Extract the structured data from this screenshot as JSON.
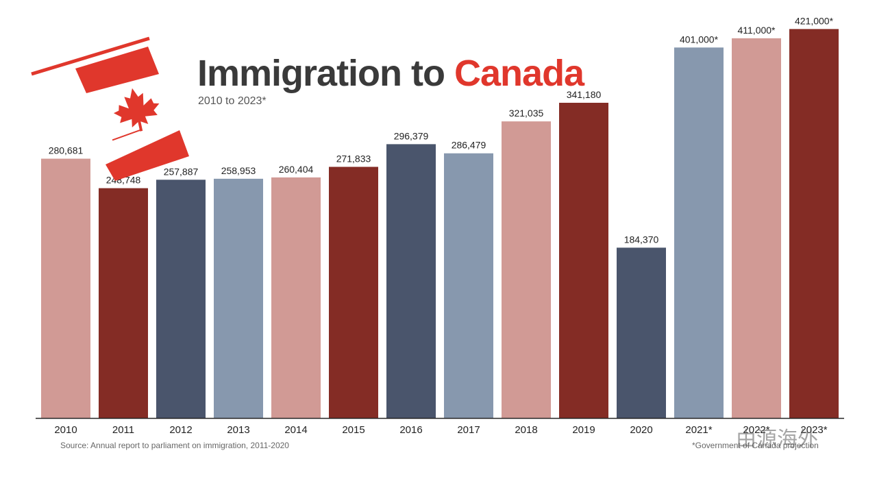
{
  "title": {
    "main": "Immigration to",
    "accent": "Canada"
  },
  "subtitle": "2010 to 2023*",
  "source": "Source: Annual report to parliament on immigration, 2011-2020",
  "note": "*Government of Canada projection",
  "watermark": "由源海外",
  "colors": {
    "pink": "#d19a95",
    "red": "#842c25",
    "navy": "#4a556c",
    "slate": "#8798ae",
    "flag_red": "#e0372c",
    "axis": "#222222"
  },
  "chart_data": {
    "type": "bar",
    "title": "Immigration to Canada",
    "subtitle": "2010 to 2023*",
    "xlabel": "",
    "ylabel": "",
    "ylim": [
      0,
      445000
    ],
    "grid": false,
    "categories": [
      "2010",
      "2011",
      "2012",
      "2013",
      "2014",
      "2015",
      "2016",
      "2017",
      "2018",
      "2019",
      "2020",
      "2021*",
      "2022*",
      "2023*"
    ],
    "values": [
      280681,
      248748,
      257887,
      258953,
      260404,
      271833,
      296379,
      286479,
      321035,
      341180,
      184370,
      401000,
      411000,
      421000
    ],
    "value_labels": [
      "280,681",
      "248,748",
      "257,887",
      "258,953",
      "260,404",
      "271,833",
      "296,379",
      "286,479",
      "321,035",
      "341,180",
      "184,370",
      "401,000*",
      "411,000*",
      "421,000*"
    ],
    "bar_colors": [
      "pink",
      "red",
      "navy",
      "slate",
      "pink",
      "red",
      "navy",
      "slate",
      "pink",
      "red",
      "navy",
      "slate",
      "pink",
      "red"
    ]
  }
}
